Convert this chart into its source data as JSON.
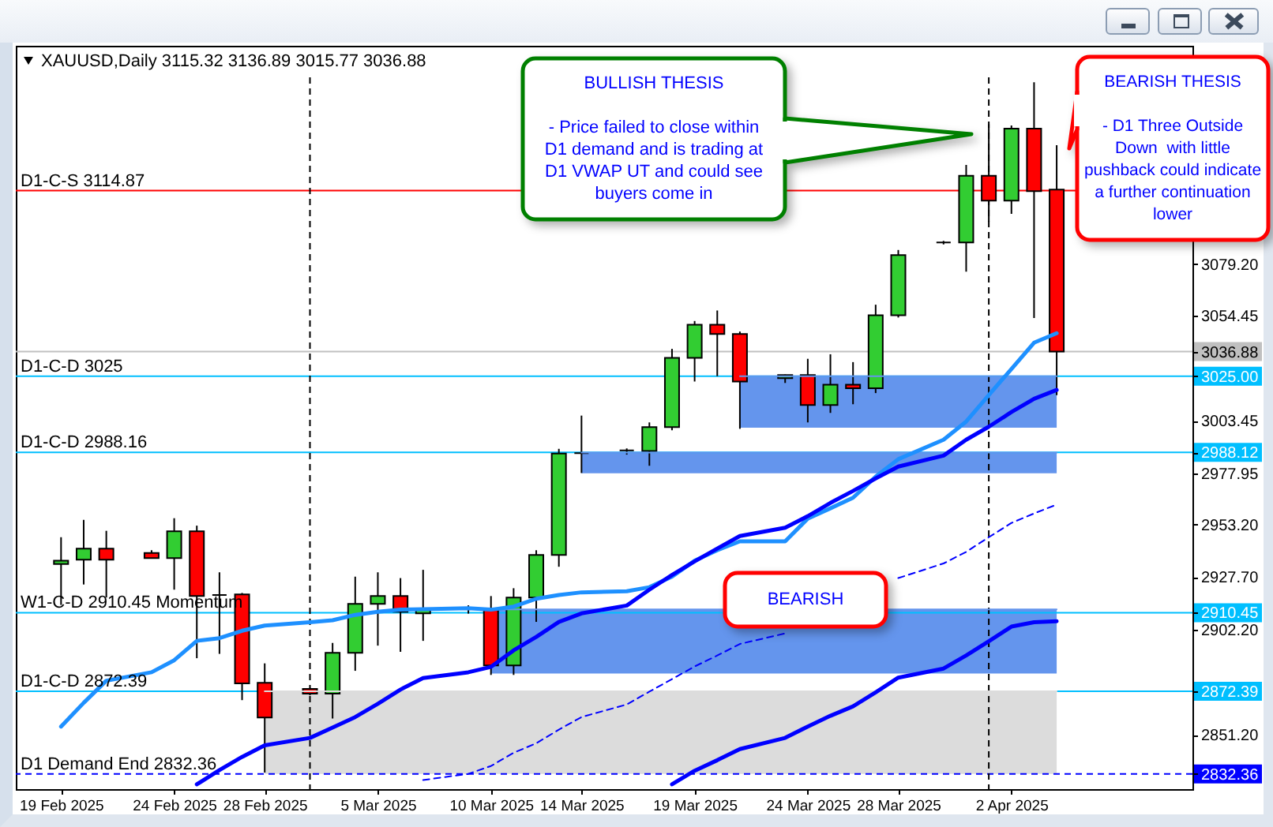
{
  "chart_data": {
    "type": "candlestick",
    "title": "XAUUSD,Daily 3115.32 3136.89 3015.77 3036.88",
    "x": [
      "2025-02-19",
      "2025-02-20",
      "2025-02-21",
      "2025-02-23",
      "2025-02-24",
      "2025-02-25",
      "2025-02-26",
      "2025-02-27",
      "2025-02-28",
      "2025-03-02",
      "2025-03-03",
      "2025-03-04",
      "2025-03-05",
      "2025-03-06",
      "2025-03-07",
      "2025-03-09",
      "2025-03-10",
      "2025-03-11",
      "2025-03-12",
      "2025-03-13",
      "2025-03-14",
      "2025-03-16",
      "2025-03-17",
      "2025-03-18",
      "2025-03-19",
      "2025-03-20",
      "2025-03-21",
      "2025-03-23",
      "2025-03-24",
      "2025-03-25",
      "2025-03-26",
      "2025-03-27",
      "2025-03-28",
      "2025-03-30",
      "2025-03-31",
      "2025-04-01",
      "2025-04-02",
      "2025-04-03",
      "2025-04-04"
    ],
    "ohlc": [
      [
        2934.0,
        2947.0,
        2914.2,
        2935.6
      ],
      [
        2936.1,
        2955.4,
        2924.1,
        2941.5
      ],
      [
        2941.5,
        2950.1,
        2917.8,
        2936.1
      ],
      [
        2939.4,
        2940.7,
        2936.9,
        2936.9
      ],
      [
        2936.9,
        2956.2,
        2921.6,
        2949.9
      ],
      [
        2949.9,
        2952.6,
        2888.4,
        2918.5
      ],
      [
        2919.0,
        2930.0,
        2890.5,
        2919.0
      ],
      [
        2919.3,
        2920.0,
        2868.1,
        2876.2
      ],
      [
        2876.5,
        2885.9,
        2833.0,
        2859.7
      ],
      [
        2873.5,
        2874.0,
        2870.5,
        2871.2
      ],
      [
        2871.2,
        2895.8,
        2859.2,
        2891.0
      ],
      [
        2891.0,
        2927.9,
        2882.3,
        2914.7
      ],
      [
        2914.7,
        2930.0,
        2894.5,
        2918.5
      ],
      [
        2918.5,
        2927.2,
        2891.5,
        2910.9
      ],
      [
        2910.1,
        2931.2,
        2896.8,
        2912.4
      ],
      [
        2912.5,
        2914.0,
        2910.0,
        2912.5
      ],
      [
        2912.4,
        2918.5,
        2880.3,
        2884.9
      ],
      [
        2884.9,
        2922.3,
        2880.3,
        2917.8
      ],
      [
        2917.8,
        2940.7,
        2906.0,
        2938.4
      ],
      [
        2938.4,
        2989.8,
        2932.7,
        2987.5
      ],
      [
        2987.7,
        3005.9,
        2978.1,
        2987.7
      ],
      [
        2989.0,
        2990.0,
        2987.0,
        2989.0
      ],
      [
        2988.8,
        3002.6,
        2981.6,
        3000.3
      ],
      [
        3000.3,
        3038.2,
        2998.8,
        3033.9
      ],
      [
        3033.9,
        3051.7,
        3022.4,
        3049.9
      ],
      [
        3049.9,
        3056.8,
        3025.0,
        3045.4
      ],
      [
        3045.4,
        3046.6,
        2999.5,
        3022.4
      ],
      [
        3024.0,
        3025.8,
        3021.7,
        3025.5
      ],
      [
        3025.5,
        3033.4,
        3002.6,
        3011.0
      ],
      [
        3011.0,
        3035.6,
        3007.2,
        3020.9
      ],
      [
        3020.9,
        3031.8,
        3011.4,
        3019.1
      ],
      [
        3019.1,
        3059.6,
        3016.8,
        3054.5
      ],
      [
        3054.5,
        3086.1,
        3053.4,
        3083.6
      ],
      [
        3089.7,
        3090.5,
        3088.8,
        3089.7
      ],
      [
        3089.7,
        3127.3,
        3075.6,
        3122.0
      ],
      [
        3122.0,
        3147.0,
        3099.8,
        3110.0
      ],
      [
        3110.0,
        3146.4,
        3103.6,
        3144.9
      ],
      [
        3144.9,
        3167.3,
        3053.2,
        3114.6
      ],
      [
        3115.32,
        3136.89,
        3015.77,
        3036.88
      ]
    ],
    "colors": [
      "#32cd32",
      "#32cd32",
      "#ff0000",
      "#ff0000",
      "#32cd32",
      "#ff0000",
      "#000000",
      "#ff0000",
      "#ff0000",
      "#ff0000",
      "#32cd32",
      "#32cd32",
      "#32cd32",
      "#ff0000",
      "#32cd32",
      "#000000",
      "#ff0000",
      "#32cd32",
      "#32cd32",
      "#32cd32",
      "#000000",
      "#000000",
      "#32cd32",
      "#32cd32",
      "#32cd32",
      "#ff0000",
      "#ff0000",
      "#32cd32",
      "#ff0000",
      "#32cd32",
      "#ff0000",
      "#32cd32",
      "#32cd32",
      "#000000",
      "#32cd32",
      "#ff0000",
      "#32cd32",
      "#ff0000",
      "#ff0000"
    ],
    "series": [
      {
        "type": "line",
        "color": "#dcdcdc",
        "x": [
          "2025-02-28",
          "2025-04-04"
        ],
        "values": [
          2872.39,
          2872.39
        ],
        "lower": [
          2832.36,
          2832.36
        ],
        "upper": [
          2872.39,
          2872.39
        ]
      },
      {
        "type": "line",
        "color": "#6495ed",
        "x": [
          "2025-03-10",
          "2025-04-04"
        ],
        "values": [
          2912,
          2912
        ],
        "lower": [
          2881,
          2881
        ],
        "upper": [
          2912,
          2912
        ]
      },
      {
        "type": "line",
        "color": "#6495ed",
        "x": [
          "2025-03-14",
          "2025-04-04"
        ],
        "values": [
          2988,
          2988
        ],
        "lower": [
          2978,
          2978
        ],
        "upper": [
          2988,
          2988
        ]
      },
      {
        "type": "line",
        "color": "#6495ed",
        "x": [
          "2025-03-21",
          "2025-04-04"
        ],
        "values": [
          3025,
          3025
        ],
        "lower": [
          3000,
          3000
        ],
        "upper": [
          3025,
          3025
        ]
      },
      {
        "type": "line",
        "color": "#1e90ff",
        "values": [
          2855.3,
          2866.8,
          2877.5,
          2881.6,
          2887.4,
          2896.8,
          2898.1,
          2901.7,
          2904.2,
          2905.8,
          2906.8,
          2909.4,
          2910.9,
          2911.9,
          2912.1,
          2912.6,
          2911.9,
          2913.4,
          2917.2,
          2919.0,
          2920.3,
          2920.8,
          2922.8,
          2927.9,
          2935.6,
          2940.7,
          2945.0,
          2945.0,
          2956.0,
          2961.0,
          2966.1,
          2976.3,
          2984.8,
          2994.2,
          3003.0,
          3015.8,
          3028.5,
          3041.2,
          3045.8
        ]
      },
      {
        "type": "line",
        "color": "#0000ff",
        "values": [
          null,
          null,
          null,
          null,
          null,
          2827.3,
          2834.2,
          2840.6,
          2846.2,
          2849.8,
          2854.8,
          2859.9,
          2866.3,
          2873.2,
          2878.8,
          2881.6,
          2884.2,
          2892.2,
          2898.7,
          2906.0,
          2910.1,
          2913.9,
          2921.6,
          2928.7,
          2935.3,
          2941.5,
          2947.6,
          2951.6,
          2957.2,
          2963.6,
          2969.4,
          2975.5,
          2981.2,
          2986.5,
          2994.2,
          3000.5,
          3007.6,
          3014.0,
          3018.3
        ]
      },
      {
        "type": "line",
        "color": "#0000ff",
        "values": [
          null,
          null,
          null,
          null,
          null,
          null,
          null,
          null,
          null,
          null,
          null,
          null,
          null,
          null,
          null,
          null,
          null,
          null,
          null,
          null,
          null,
          null,
          null,
          2827.3,
          2833.9,
          2839.0,
          2844.4,
          2849.8,
          2855.3,
          2860.5,
          2865.1,
          2871.9,
          2879.0,
          2883.4,
          2889.7,
          2896.6,
          2903.7,
          2905.8,
          2906.3
        ]
      },
      {
        "type": "line",
        "color": "#0000ff",
        "line_style": "dashed",
        "values": [
          null,
          null,
          null,
          null,
          null,
          null,
          null,
          null,
          null,
          null,
          null,
          null,
          null,
          null,
          2829.4,
          2832.4,
          2836.2,
          2842.6,
          2847.2,
          2853.8,
          2859.9,
          2866.0,
          2872.2,
          2878.3,
          2884.4,
          2889.7,
          2895.3,
          2900.4,
          null,
          null,
          null,
          null,
          2927.2,
          2934.3,
          2939.9,
          2947.0,
          2953.9,
          2958.5,
          2962.8
        ]
      }
    ],
    "xlim": [
      "2025-02-17",
      "2025-04-10"
    ],
    "ylim": [
      2825,
      3185
    ],
    "yticks": [
      {
        "value": 3079.2,
        "label": "3079.20"
      },
      3054.45,
      3036.88,
      {
        "value": 3025,
        "label": "3025.00"
      },
      3003.45,
      2988.12,
      2977.95,
      {
        "value": 2953.2,
        "label": "2953.20"
      },
      {
        "value": 2927.7,
        "label": "2927.70"
      },
      2910.45,
      {
        "value": 2902.2,
        "label": "2902.20"
      },
      2872.39,
      {
        "value": 2851.2,
        "label": "2851.20"
      },
      2832.36
    ],
    "xticks": [
      {
        "value": "2025-02-19",
        "label": "19 Feb 2025"
      },
      {
        "value": "2025-02-24",
        "label": "24 Feb 2025"
      },
      {
        "value": "2025-02-28",
        "label": "28 Feb 2025"
      },
      {
        "value": "2025-03-05",
        "label": "5 Mar 2025"
      },
      {
        "value": "2025-03-10",
        "label": "10 Mar 2025"
      },
      {
        "value": "2025-03-14",
        "label": "14 Mar 2025"
      },
      {
        "value": "2025-03-19",
        "label": "19 Mar 2025"
      },
      {
        "value": "2025-03-24",
        "label": "24 Mar 2025"
      },
      {
        "value": "2025-03-28",
        "label": "28 Mar 2025"
      },
      {
        "value": "2025-04-02",
        "label": "2 Apr 2025"
      }
    ],
    "ref_lines": [
      {
        "axis": "y",
        "value": 3114.87,
        "label": "D1-C-S 3114.87",
        "color": "#ff0000"
      },
      {
        "axis": "y",
        "value": 3036.88,
        "color": "#c0c0c0"
      },
      {
        "axis": "y",
        "value": 3025,
        "label": "D1-C-D 3025",
        "color": "#00bfff"
      },
      {
        "axis": "y",
        "value": 2988.12,
        "label": "D1-C-D 2988.16",
        "color": "#00bfff"
      },
      {
        "axis": "y",
        "value": 2910.45,
        "label": "W1-C-D 2910.45 Momentum",
        "color": "#00bfff"
      },
      {
        "axis": "y",
        "value": 2872.39,
        "label": "D1-C-D 2872.39",
        "color": "#00bfff"
      },
      {
        "axis": "y",
        "value": 2832.36,
        "label": "D1 Demand End 2832.36",
        "color": "#0000ff",
        "line_style": "dashed"
      },
      {
        "axis": "x",
        "value": "2025-03-02",
        "color": "#000000",
        "line_style": "dashed"
      },
      {
        "axis": "x",
        "value": "2025-04-01",
        "color": "#000000",
        "line_style": "dashed"
      }
    ],
    "annotations": [
      "BULLISH THESIS\n\n- Price failed to close within\nD1 demand and is trading at\nD1 VWAP UT and could see\nbuyers come in",
      "BEARISH THESIS\n\n- D1 Three Outside\nDown  with little\npushback could indicate\na further continuation\nlower",
      "BEARISH"
    ]
  }
}
